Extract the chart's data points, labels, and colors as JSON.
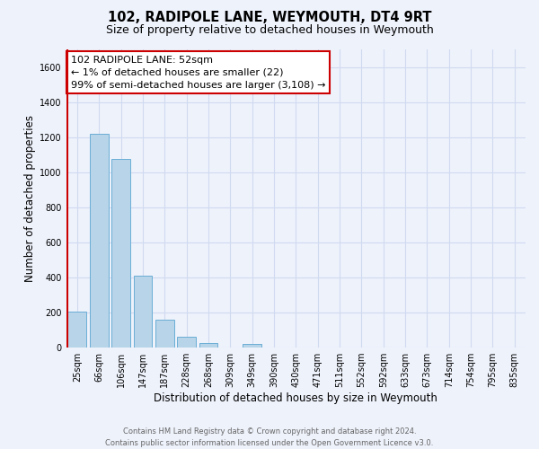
{
  "title": "102, RADIPOLE LANE, WEYMOUTH, DT4 9RT",
  "subtitle": "Size of property relative to detached houses in Weymouth",
  "xlabel": "Distribution of detached houses by size in Weymouth",
  "ylabel": "Number of detached properties",
  "bar_labels": [
    "25sqm",
    "66sqm",
    "106sqm",
    "147sqm",
    "187sqm",
    "228sqm",
    "268sqm",
    "309sqm",
    "349sqm",
    "390sqm",
    "430sqm",
    "471sqm",
    "511sqm",
    "552sqm",
    "592sqm",
    "633sqm",
    "673sqm",
    "714sqm",
    "754sqm",
    "795sqm",
    "835sqm"
  ],
  "bar_values": [
    207,
    1220,
    1075,
    410,
    160,
    60,
    25,
    0,
    20,
    0,
    0,
    0,
    0,
    0,
    0,
    0,
    0,
    0,
    0,
    0,
    0
  ],
  "highlighted_bar_index": 0,
  "bar_color": "#b8d4e8",
  "bar_edge_color": "#6aaed6",
  "highlight_line_color": "#cc0000",
  "ylim": [
    0,
    1700
  ],
  "yticks": [
    0,
    200,
    400,
    600,
    800,
    1000,
    1200,
    1400,
    1600
  ],
  "annotation_box_text": "102 RADIPOLE LANE: 52sqm\n← 1% of detached houses are smaller (22)\n99% of semi-detached houses are larger (3,108) →",
  "footer_line1": "Contains HM Land Registry data © Crown copyright and database right 2024.",
  "footer_line2": "Contains public sector information licensed under the Open Government Licence v3.0.",
  "background_color": "#eef2fb",
  "grid_color": "#d0daf0",
  "box_edge_color": "#cc0000",
  "title_fontsize": 10.5,
  "subtitle_fontsize": 9,
  "axis_label_fontsize": 8.5,
  "tick_fontsize": 7,
  "annotation_fontsize": 8,
  "footer_fontsize": 6
}
